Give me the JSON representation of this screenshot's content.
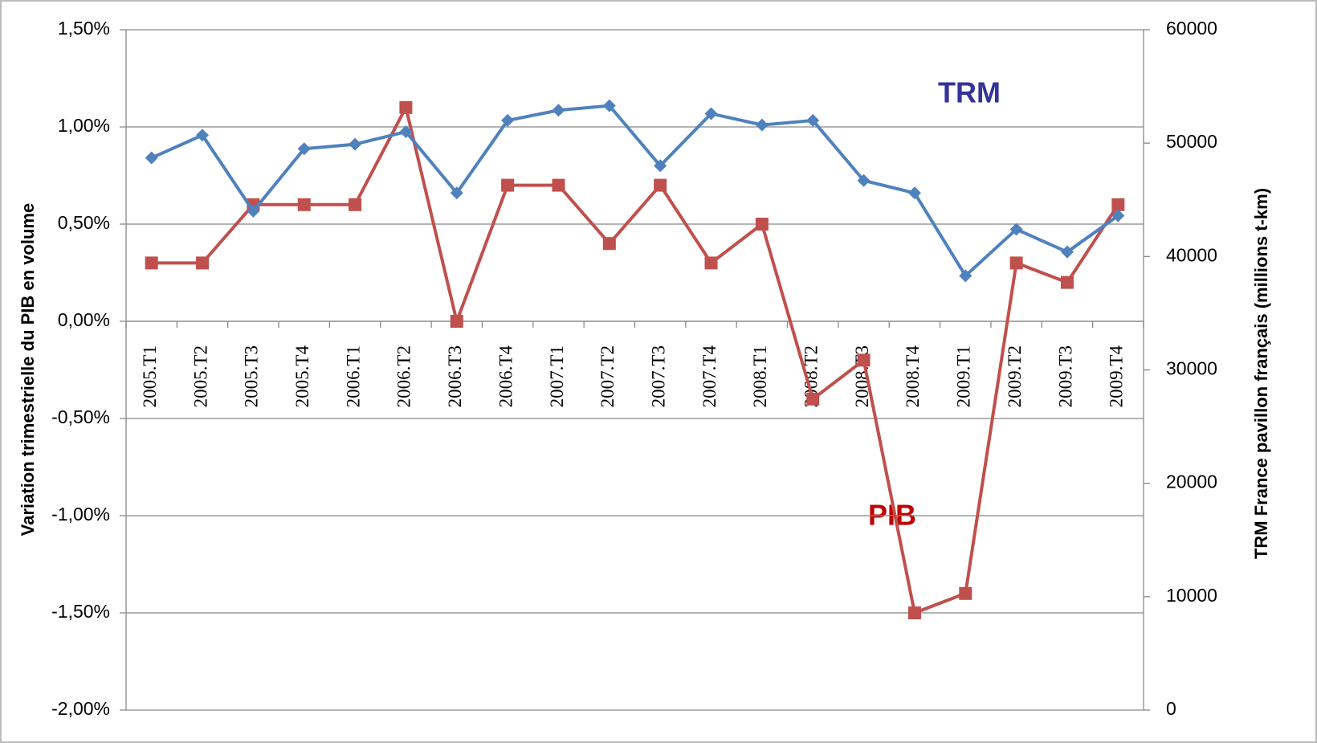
{
  "chart_data": {
    "type": "line",
    "y_label": "Variation trimestrielle du PIB  en volume",
    "y2_label": "TRM France pavillon français (millions t-km)",
    "categories": [
      "2005.T1",
      "2005.T2",
      "2005.T3",
      "2005.T4",
      "2006.T1",
      "2006.T2",
      "2006.T3",
      "2006.T4",
      "2007.T1",
      "2007.T2",
      "2007.T3",
      "2007.T4",
      "2008.T1",
      "2008.T2",
      "2008.T3",
      "2008.T4",
      "2009.T1",
      "2009.T2",
      "2009.T3",
      "2009.T4"
    ],
    "series": [
      {
        "name": "PIB",
        "color": "#c0504d",
        "marker": "square",
        "values": [
          0.3,
          0.3,
          0.6,
          0.6,
          0.6,
          1.1,
          0.0,
          0.7,
          0.7,
          0.4,
          0.7,
          0.3,
          0.5,
          -0.4,
          -0.2,
          -1.5,
          -1.4,
          0.3,
          0.2,
          0.6
        ]
      },
      {
        "name": "TRM",
        "color": "#4f81bd",
        "marker": "diamond",
        "axis": "y2",
        "values": [
          48700,
          50700,
          44000,
          49500,
          49900,
          51000,
          45600,
          52000,
          52900,
          53300,
          48000,
          52600,
          51600,
          52000,
          46700,
          45600,
          38300,
          42400,
          40400,
          43600
        ]
      }
    ],
    "ylim": [
      -2,
      1.5
    ],
    "yticks": [
      {
        "value": 1.5,
        "label": "1,50%"
      },
      {
        "value": 1,
        "label": "1,00%"
      },
      {
        "value": 0.5,
        "label": "0,50%"
      },
      {
        "value": 0,
        "label": "0,00%"
      },
      {
        "value": -0.5,
        "label": "-0,50%"
      },
      {
        "value": -1,
        "label": "-1,00%"
      },
      {
        "value": -1.5,
        "label": "-1,50%"
      },
      {
        "value": -2,
        "label": "-2,00%"
      }
    ],
    "y2lim": [
      0,
      60000
    ],
    "y2ticks": [
      0,
      10000,
      20000,
      30000,
      40000,
      50000,
      60000
    ],
    "grid": true
  }
}
